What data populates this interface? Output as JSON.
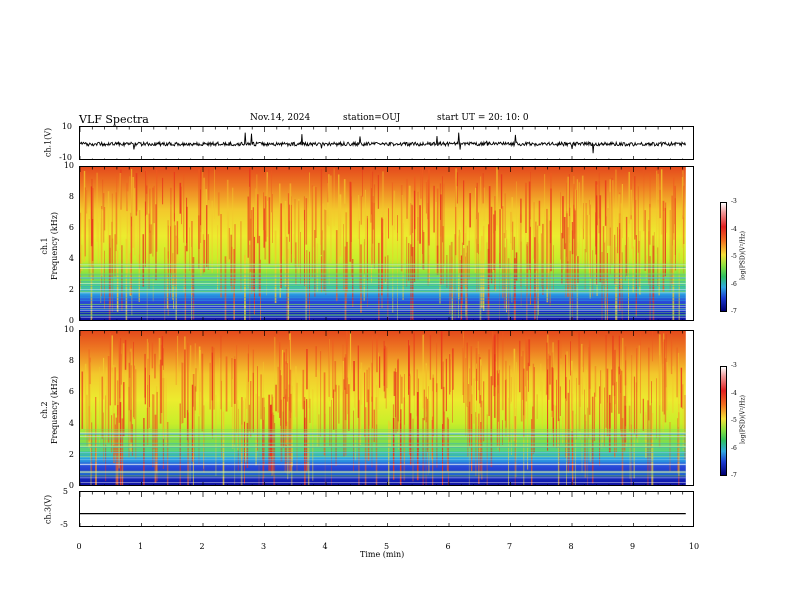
{
  "header": {
    "title": "VLF Spectra",
    "date": "Nov.14, 2024",
    "station": "station=OUJ",
    "start_ut": "start  UT =   20: 10: 0"
  },
  "chart_data": [
    {
      "type": "line",
      "panel": "ch1-waveform",
      "ylabel": "ch.1(V)",
      "ylim": [
        -10,
        10
      ],
      "y_ticks": [
        "10",
        "-10"
      ],
      "x_range_min": [
        0,
        9.85
      ],
      "description_values": {
        "baseline_volts": 0
      }
    },
    {
      "type": "heatmap",
      "panel": "ch1-spectrogram",
      "ylabel": "ch.1\nFrequency (kHz)",
      "ylim": [
        0,
        10
      ],
      "y_ticks": [
        "0",
        "2",
        "4",
        "6",
        "8",
        "10"
      ],
      "colorbar": {
        "label": "log(PSD)(V²/Hz)",
        "range": [
          -7,
          -3
        ],
        "ticks": [
          "-3",
          "-4",
          "-5",
          "-6",
          "-7"
        ]
      }
    },
    {
      "type": "heatmap",
      "panel": "ch2-spectrogram",
      "ylabel": "ch.2\nFrequency (kHz)",
      "ylim": [
        0,
        10
      ],
      "y_ticks": [
        "0",
        "2",
        "4",
        "6",
        "8",
        "10"
      ],
      "colorbar": {
        "label": "log(PSD)(V²/Hz)",
        "range": [
          -7,
          -3
        ],
        "ticks": [
          "-3",
          "-4",
          "-5",
          "-6",
          "-7"
        ]
      }
    },
    {
      "type": "line",
      "panel": "ch3-waveform",
      "ylabel": "ch.3(V)",
      "ylim": [
        -5,
        5
      ],
      "y_ticks": [
        "5",
        "-5"
      ],
      "x": [
        0,
        9.85
      ],
      "y": [
        -1,
        -1
      ]
    }
  ],
  "x_axis": {
    "label": "Time  (min)",
    "ticks": [
      "0",
      "1",
      "2",
      "3",
      "4",
      "5",
      "6",
      "7",
      "8",
      "9",
      "10"
    ],
    "range": [
      0,
      10
    ]
  }
}
